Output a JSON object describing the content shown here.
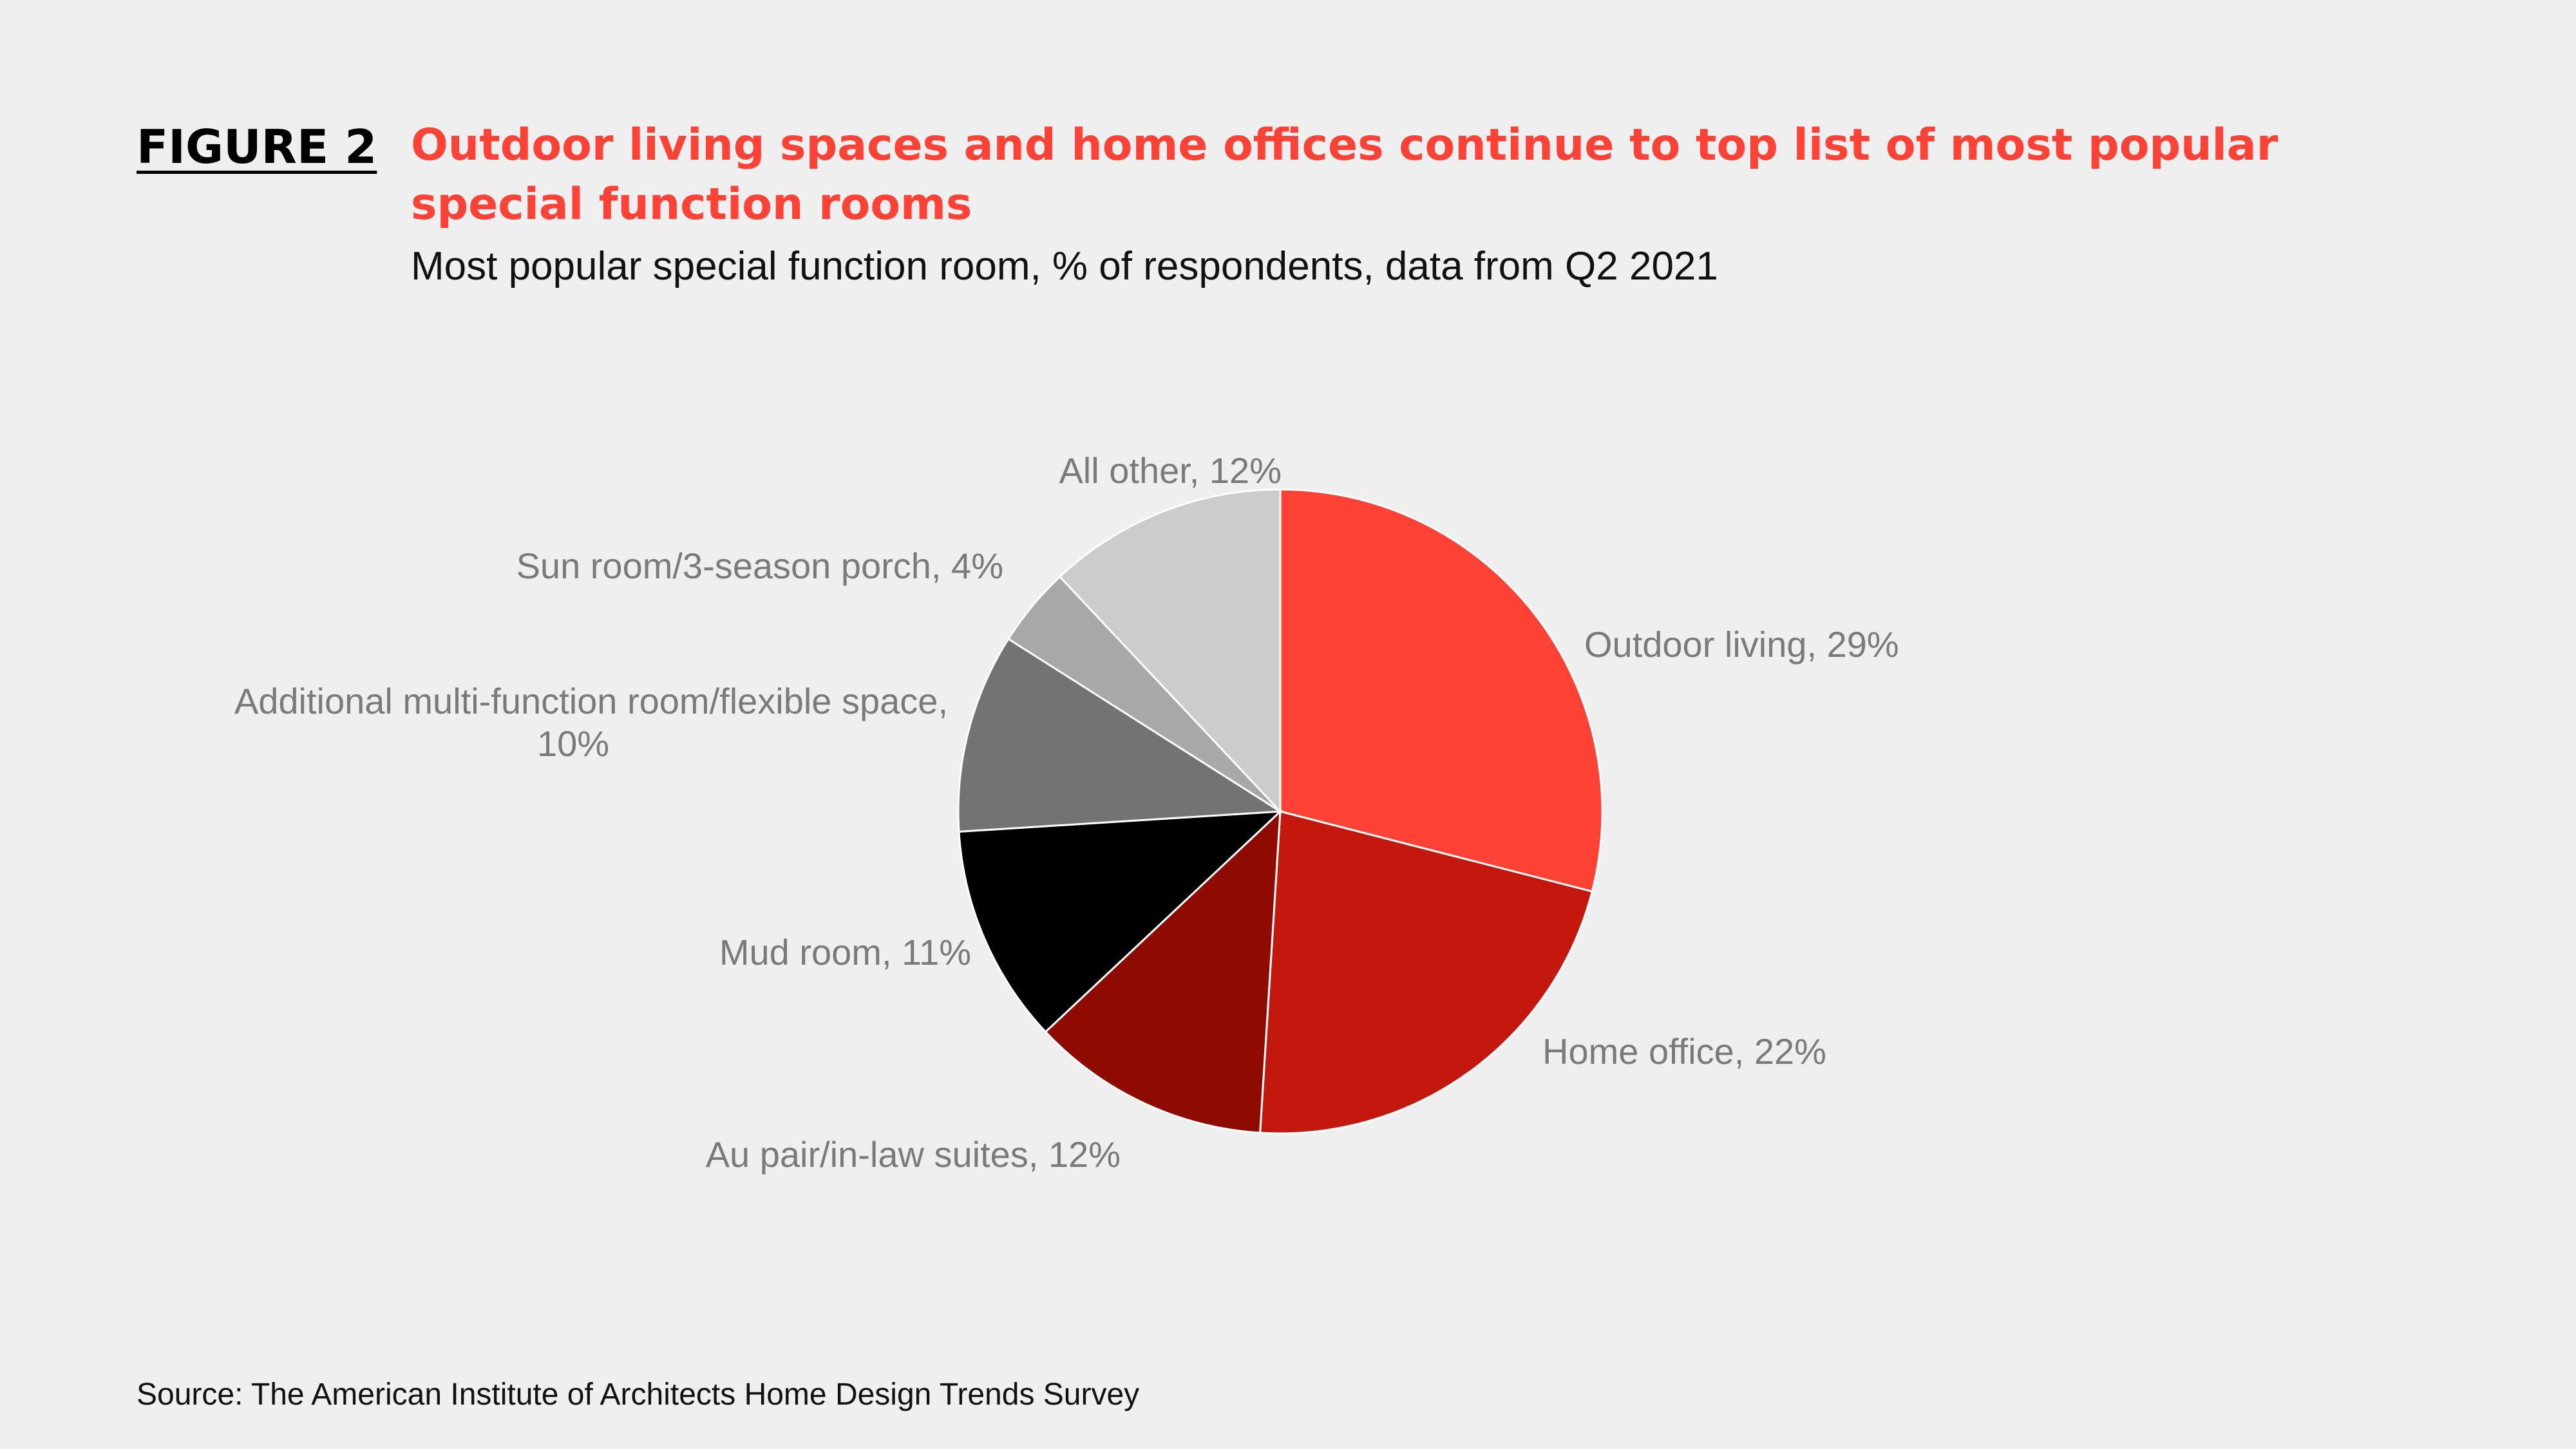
{
  "figure_label": "FIGURE 2",
  "chart_data": {
    "type": "pie",
    "title": "Outdoor living spaces and home offices continue to top list of most popular special function rooms",
    "subtitle": "Most popular special function room, % of respondents, data from Q2 2021",
    "slices": [
      {
        "name": "Outdoor living",
        "value": 29,
        "label": "Outdoor living, 29%",
        "color": "#ff4136"
      },
      {
        "name": "Home office",
        "value": 22,
        "label": "Home office, 22%",
        "color": "#c4180f"
      },
      {
        "name": "Au pair/in-law suites",
        "value": 12,
        "label": "Au pair/in-law suites, 12%",
        "color": "#8f0a00"
      },
      {
        "name": "Mud room",
        "value": 11,
        "label": "Mud room, 11%",
        "color": "#000000"
      },
      {
        "name": "Additional multi-function room/flexible space",
        "value": 10,
        "label": "Additional multi-function room/flexible space,",
        "label2": "10%",
        "color": "#737373"
      },
      {
        "name": "Sun room/3-season porch",
        "value": 4,
        "label": "Sun room/3-season porch, 4%",
        "color": "#a8a8a8"
      },
      {
        "name": "All other",
        "value": 12,
        "label": "All other, 12%",
        "color": "#cccccc"
      }
    ]
  },
  "source": "Source: The American Institute of Architects Home Design Trends Survey"
}
